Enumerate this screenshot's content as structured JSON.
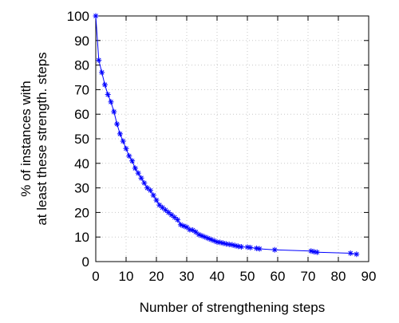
{
  "chart_data": {
    "type": "line",
    "title": "",
    "xlabel": "Number of strengthening steps",
    "ylabel_lines": [
      "% of instances with",
      "at least these strength. steps"
    ],
    "xlim": [
      0,
      90
    ],
    "ylim": [
      0,
      100
    ],
    "xticks": [
      0,
      10,
      20,
      30,
      40,
      50,
      60,
      70,
      80,
      90
    ],
    "yticks": [
      0,
      10,
      20,
      30,
      40,
      50,
      60,
      70,
      80,
      90,
      100
    ],
    "grid": true,
    "legend": "none",
    "series": [
      {
        "color": "#0000ff",
        "marker": "asterisk",
        "x": [
          0,
          1,
          2,
          3,
          4,
          5,
          6,
          7,
          8,
          9,
          10,
          11,
          12,
          13,
          14,
          15,
          16,
          17,
          18,
          19,
          20,
          21,
          22,
          23,
          24,
          25,
          26,
          27,
          28,
          29,
          30,
          31,
          32,
          33,
          34,
          35,
          36,
          37,
          38,
          39,
          40,
          41,
          42,
          43,
          44,
          45,
          46,
          47,
          48,
          50,
          51,
          53,
          54,
          59,
          71,
          72,
          73,
          84,
          86
        ],
        "y": [
          100,
          82,
          77,
          72,
          68,
          65,
          61,
          56,
          52,
          49,
          46,
          43,
          41,
          38,
          36,
          34,
          32,
          30,
          29,
          27,
          25,
          23,
          22,
          21,
          20,
          19,
          18,
          17,
          15,
          14.5,
          14,
          13,
          12.8,
          12,
          11,
          10.5,
          10,
          9.5,
          9,
          8.5,
          8,
          7.8,
          7.5,
          7.2,
          7,
          6.8,
          6.5,
          6.2,
          6,
          5.9,
          5.7,
          5.4,
          5.2,
          4.8,
          4.3,
          4,
          3.8,
          3.4,
          3
        ]
      }
    ]
  }
}
